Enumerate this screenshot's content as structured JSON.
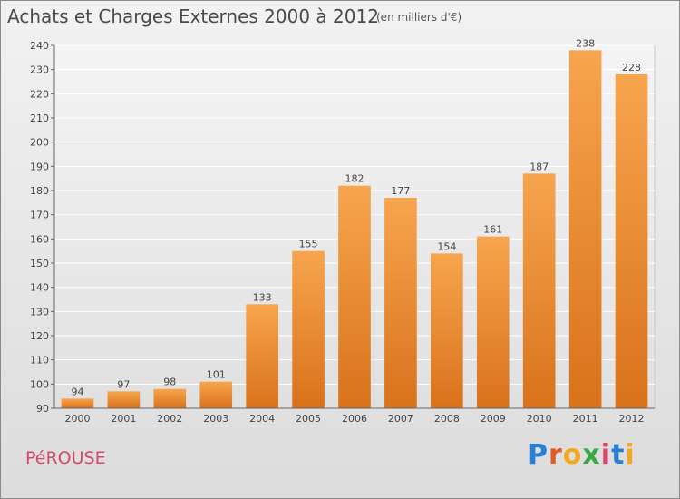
{
  "header": {
    "title": "Achats et Charges Externes 2000 à 2012",
    "subtitle": "(en milliers d'€)"
  },
  "footer": {
    "commune": "PéROUSE",
    "brand_letters": [
      "P",
      "r",
      "o",
      "x",
      "i",
      "t",
      "i"
    ],
    "brand_colors": [
      "#2a7fd4",
      "#e05a2a",
      "#f2a81e",
      "#3aa845",
      "#d2496b",
      "#2a7fd4",
      "#f2a81e"
    ]
  },
  "chart_data": {
    "type": "bar",
    "categories": [
      "2000",
      "2001",
      "2002",
      "2003",
      "2004",
      "2005",
      "2006",
      "2007",
      "2008",
      "2009",
      "2010",
      "2011",
      "2012"
    ],
    "values": [
      94,
      97,
      98,
      101,
      133,
      155,
      182,
      177,
      154,
      161,
      187,
      238,
      228
    ],
    "ylim": [
      90,
      240
    ],
    "yticks": [
      90,
      100,
      110,
      120,
      130,
      140,
      150,
      160,
      170,
      180,
      190,
      200,
      210,
      220,
      230,
      240
    ],
    "grid": true,
    "bar_color_top": "#f7a54e",
    "bar_color_bottom": "#d9721b"
  }
}
